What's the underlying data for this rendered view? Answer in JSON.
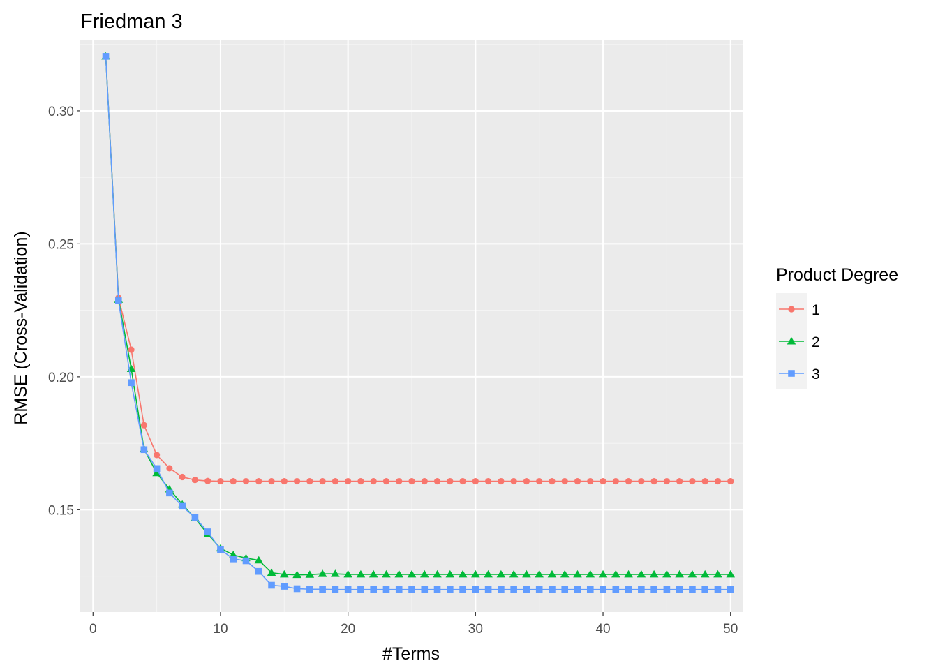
{
  "chart_data": {
    "type": "line",
    "title": "Friedman 3",
    "xlabel": "#Terms",
    "ylabel": "RMSE (Cross-Validation)",
    "xlim": [
      -1,
      51
    ],
    "ylim": [
      0.1115,
      0.3265
    ],
    "xticks": [
      0,
      10,
      20,
      30,
      40,
      50
    ],
    "xtick_labels": [
      "0",
      "10",
      "20",
      "30",
      "40",
      "50"
    ],
    "yticks": [
      0.15,
      0.2,
      0.25,
      0.3
    ],
    "ytick_labels": [
      "0.15",
      "0.20",
      "0.25",
      "0.30"
    ],
    "grid": true,
    "legend": {
      "title": "Product Degree",
      "position": "right"
    },
    "x": [
      1,
      2,
      3,
      4,
      5,
      6,
      7,
      8,
      9,
      10,
      11,
      12,
      13,
      14,
      15,
      16,
      17,
      18,
      19,
      20,
      21,
      22,
      23,
      24,
      25,
      26,
      27,
      28,
      29,
      30,
      31,
      32,
      33,
      34,
      35,
      36,
      37,
      38,
      39,
      40,
      41,
      42,
      43,
      44,
      45,
      46,
      47,
      48,
      49,
      50
    ],
    "series": [
      {
        "name": "1",
        "color": "#F8766D",
        "marker": "circle",
        "values": [
          0.3205,
          0.2297,
          0.2102,
          0.1818,
          0.1706,
          0.1656,
          0.1623,
          0.1612,
          0.1608,
          0.1607,
          0.1607,
          0.1607,
          0.1607,
          0.1607,
          0.1607,
          0.1607,
          0.1607,
          0.1607,
          0.1607,
          0.1607,
          0.1607,
          0.1607,
          0.1607,
          0.1607,
          0.1607,
          0.1607,
          0.1607,
          0.1607,
          0.1607,
          0.1607,
          0.1607,
          0.1607,
          0.1607,
          0.1607,
          0.1607,
          0.1607,
          0.1607,
          0.1607,
          0.1607,
          0.1607,
          0.1607,
          0.1607,
          0.1607,
          0.1607,
          0.1607,
          0.1607,
          0.1607,
          0.1607,
          0.1607,
          0.1607
        ]
      },
      {
        "name": "2",
        "color": "#00BA38",
        "marker": "triangle",
        "values": [
          0.3205,
          0.229,
          0.203,
          0.1728,
          0.1638,
          0.1577,
          0.152,
          0.1468,
          0.1408,
          0.1355,
          0.133,
          0.1318,
          0.131,
          0.1263,
          0.1257,
          0.1255,
          0.1256,
          0.1259,
          0.1259,
          0.1257,
          0.1257,
          0.1257,
          0.1257,
          0.1257,
          0.1257,
          0.1257,
          0.1257,
          0.1257,
          0.1257,
          0.1257,
          0.1257,
          0.1257,
          0.1257,
          0.1257,
          0.1257,
          0.1257,
          0.1257,
          0.1257,
          0.1257,
          0.1257,
          0.1257,
          0.1257,
          0.1257,
          0.1257,
          0.1257,
          0.1257,
          0.1257,
          0.1257,
          0.1257,
          0.1257
        ]
      },
      {
        "name": "3",
        "color": "#619CFF",
        "marker": "square",
        "values": [
          0.3205,
          0.2286,
          0.1978,
          0.1726,
          0.1655,
          0.1563,
          0.1513,
          0.1471,
          0.1417,
          0.135,
          0.1315,
          0.1308,
          0.1268,
          0.1216,
          0.1212,
          0.1203,
          0.1201,
          0.1201,
          0.12,
          0.12,
          0.12,
          0.12,
          0.12,
          0.12,
          0.12,
          0.12,
          0.12,
          0.12,
          0.12,
          0.12,
          0.12,
          0.12,
          0.12,
          0.12,
          0.12,
          0.12,
          0.12,
          0.12,
          0.12,
          0.12,
          0.12,
          0.12,
          0.12,
          0.12,
          0.12,
          0.12,
          0.12,
          0.12,
          0.12,
          0.12
        ]
      }
    ]
  }
}
